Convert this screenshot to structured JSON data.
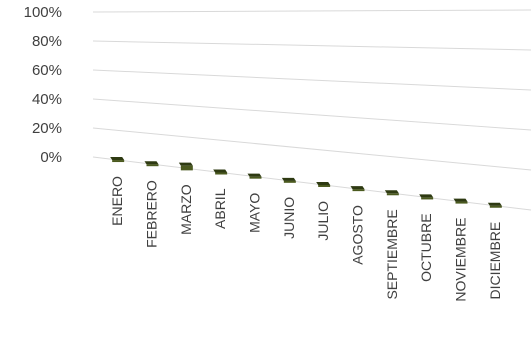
{
  "chart_data": {
    "type": "bar",
    "categories": [
      "ENERO",
      "FEBRERO",
      "MARZO",
      "ABRIL",
      "MAYO",
      "JUNIO",
      "JULIO",
      "AGOSTO",
      "SEPTIEMBRE",
      "OCTUBRE",
      "NOVIEMBRE",
      "DICIEMBRE"
    ],
    "values": [
      0,
      0,
      0.03,
      0,
      0,
      0,
      0,
      0,
      0,
      0,
      0,
      0
    ],
    "y_ticks": [
      "0%",
      "20%",
      "40%",
      "60%",
      "80%",
      "100%"
    ],
    "ylim": [
      0,
      1
    ],
    "grid": true,
    "legend": "none",
    "bar_color": "#4b5a1f",
    "bar_dark": "#2e3a12"
  }
}
